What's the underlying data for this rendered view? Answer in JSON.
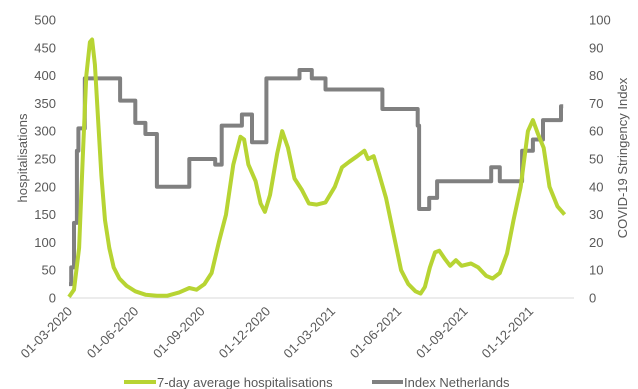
{
  "chart_data": {
    "type": "line",
    "title": "",
    "xlabel": "",
    "ylabel": "hospitalisations",
    "y2label": "COVID-19 Stringency Index",
    "xlim": [
      "2020-03-01",
      "2022-01-31"
    ],
    "ylim": [
      0,
      500
    ],
    "y2lim": [
      0,
      100
    ],
    "x_ticks": [
      "01-03-2020",
      "01-06-2020",
      "01-09-2020",
      "01-12-2020",
      "01-03-2021",
      "01-06-2021",
      "01-09-2021",
      "01-12-2021"
    ],
    "y_ticks": [
      0,
      50,
      100,
      150,
      200,
      250,
      300,
      350,
      400,
      450,
      500
    ],
    "y2_ticks": [
      0,
      10,
      20,
      30,
      40,
      50,
      60,
      70,
      80,
      90,
      100
    ],
    "grid": false,
    "legend_position": "bottom",
    "series": [
      {
        "name": "7-day average hospitalisations",
        "axis": "left",
        "color": "#b7d433",
        "points": [
          [
            "2020-03-01",
            2
          ],
          [
            "2020-03-08",
            15
          ],
          [
            "2020-03-15",
            90
          ],
          [
            "2020-03-20",
            250
          ],
          [
            "2020-03-25",
            400
          ],
          [
            "2020-03-30",
            460
          ],
          [
            "2020-04-02",
            465
          ],
          [
            "2020-04-06",
            420
          ],
          [
            "2020-04-10",
            330
          ],
          [
            "2020-04-15",
            220
          ],
          [
            "2020-04-20",
            140
          ],
          [
            "2020-04-26",
            90
          ],
          [
            "2020-05-02",
            55
          ],
          [
            "2020-05-10",
            35
          ],
          [
            "2020-05-20",
            22
          ],
          [
            "2020-06-01",
            12
          ],
          [
            "2020-06-15",
            6
          ],
          [
            "2020-07-01",
            4
          ],
          [
            "2020-07-15",
            4
          ],
          [
            "2020-08-01",
            10
          ],
          [
            "2020-08-15",
            18
          ],
          [
            "2020-08-25",
            15
          ],
          [
            "2020-09-05",
            25
          ],
          [
            "2020-09-15",
            45
          ],
          [
            "2020-09-25",
            100
          ],
          [
            "2020-10-05",
            150
          ],
          [
            "2020-10-15",
            240
          ],
          [
            "2020-10-25",
            290
          ],
          [
            "2020-10-30",
            285
          ],
          [
            "2020-11-05",
            240
          ],
          [
            "2020-11-15",
            210
          ],
          [
            "2020-11-22",
            170
          ],
          [
            "2020-11-28",
            155
          ],
          [
            "2020-12-05",
            185
          ],
          [
            "2020-12-15",
            260
          ],
          [
            "2020-12-22",
            300
          ],
          [
            "2020-12-30",
            270
          ],
          [
            "2021-01-08",
            215
          ],
          [
            "2021-01-18",
            195
          ],
          [
            "2021-01-28",
            170
          ],
          [
            "2021-02-08",
            168
          ],
          [
            "2021-02-20",
            172
          ],
          [
            "2021-03-05",
            200
          ],
          [
            "2021-03-15",
            235
          ],
          [
            "2021-03-25",
            245
          ],
          [
            "2021-04-05",
            255
          ],
          [
            "2021-04-15",
            265
          ],
          [
            "2021-04-20",
            250
          ],
          [
            "2021-04-28",
            255
          ],
          [
            "2021-05-05",
            225
          ],
          [
            "2021-05-15",
            180
          ],
          [
            "2021-05-28",
            100
          ],
          [
            "2021-06-05",
            50
          ],
          [
            "2021-06-15",
            25
          ],
          [
            "2021-06-25",
            12
          ],
          [
            "2021-07-02",
            8
          ],
          [
            "2021-07-08",
            20
          ],
          [
            "2021-07-15",
            55
          ],
          [
            "2021-07-22",
            82
          ],
          [
            "2021-07-28",
            85
          ],
          [
            "2021-08-05",
            70
          ],
          [
            "2021-08-12",
            58
          ],
          [
            "2021-08-20",
            68
          ],
          [
            "2021-08-28",
            58
          ],
          [
            "2021-09-10",
            62
          ],
          [
            "2021-09-20",
            55
          ],
          [
            "2021-10-01",
            40
          ],
          [
            "2021-10-10",
            35
          ],
          [
            "2021-10-20",
            45
          ],
          [
            "2021-10-30",
            80
          ],
          [
            "2021-11-08",
            140
          ],
          [
            "2021-11-18",
            200
          ],
          [
            "2021-11-28",
            300
          ],
          [
            "2021-12-05",
            320
          ],
          [
            "2021-12-12",
            295
          ],
          [
            "2021-12-20",
            270
          ],
          [
            "2021-12-28",
            200
          ],
          [
            "2022-01-08",
            165
          ],
          [
            "2022-01-18",
            150
          ]
        ]
      },
      {
        "name": "Index Netherlands",
        "axis": "right",
        "color": "#808080",
        "points": [
          [
            "2020-03-01",
            5
          ],
          [
            "2020-03-04",
            5
          ],
          [
            "2020-03-04",
            11
          ],
          [
            "2020-03-08",
            11
          ],
          [
            "2020-03-08",
            27
          ],
          [
            "2020-03-12",
            27
          ],
          [
            "2020-03-12",
            53
          ],
          [
            "2020-03-14",
            53
          ],
          [
            "2020-03-14",
            61
          ],
          [
            "2020-03-23",
            61
          ],
          [
            "2020-03-23",
            79
          ],
          [
            "2020-05-11",
            79
          ],
          [
            "2020-05-11",
            71
          ],
          [
            "2020-06-01",
            71
          ],
          [
            "2020-06-01",
            63
          ],
          [
            "2020-06-15",
            63
          ],
          [
            "2020-06-15",
            59
          ],
          [
            "2020-07-01",
            59
          ],
          [
            "2020-07-01",
            40
          ],
          [
            "2020-08-15",
            40
          ],
          [
            "2020-08-15",
            50
          ],
          [
            "2020-09-20",
            50
          ],
          [
            "2020-09-20",
            48
          ],
          [
            "2020-09-29",
            48
          ],
          [
            "2020-09-29",
            62
          ],
          [
            "2020-10-27",
            62
          ],
          [
            "2020-10-27",
            66
          ],
          [
            "2020-11-10",
            66
          ],
          [
            "2020-11-10",
            56
          ],
          [
            "2020-11-30",
            56
          ],
          [
            "2020-11-30",
            79
          ],
          [
            "2021-01-15",
            79
          ],
          [
            "2021-01-15",
            82
          ],
          [
            "2021-02-01",
            82
          ],
          [
            "2021-02-01",
            79
          ],
          [
            "2021-02-20",
            79
          ],
          [
            "2021-02-20",
            75
          ],
          [
            "2021-05-10",
            75
          ],
          [
            "2021-05-10",
            68
          ],
          [
            "2021-06-28",
            68
          ],
          [
            "2021-06-28",
            62
          ],
          [
            "2021-06-30",
            62
          ],
          [
            "2021-06-30",
            32
          ],
          [
            "2021-07-14",
            32
          ],
          [
            "2021-07-14",
            36
          ],
          [
            "2021-07-25",
            36
          ],
          [
            "2021-07-25",
            42
          ],
          [
            "2021-10-08",
            42
          ],
          [
            "2021-10-08",
            47
          ],
          [
            "2021-10-20",
            47
          ],
          [
            "2021-10-20",
            42
          ],
          [
            "2021-11-20",
            42
          ],
          [
            "2021-11-20",
            53
          ],
          [
            "2021-12-05",
            53
          ],
          [
            "2021-12-05",
            57
          ],
          [
            "2021-12-19",
            57
          ],
          [
            "2021-12-19",
            64
          ],
          [
            "2022-01-13",
            64
          ],
          [
            "2022-01-13",
            69
          ],
          [
            "2022-01-16",
            69
          ]
        ]
      }
    ]
  }
}
